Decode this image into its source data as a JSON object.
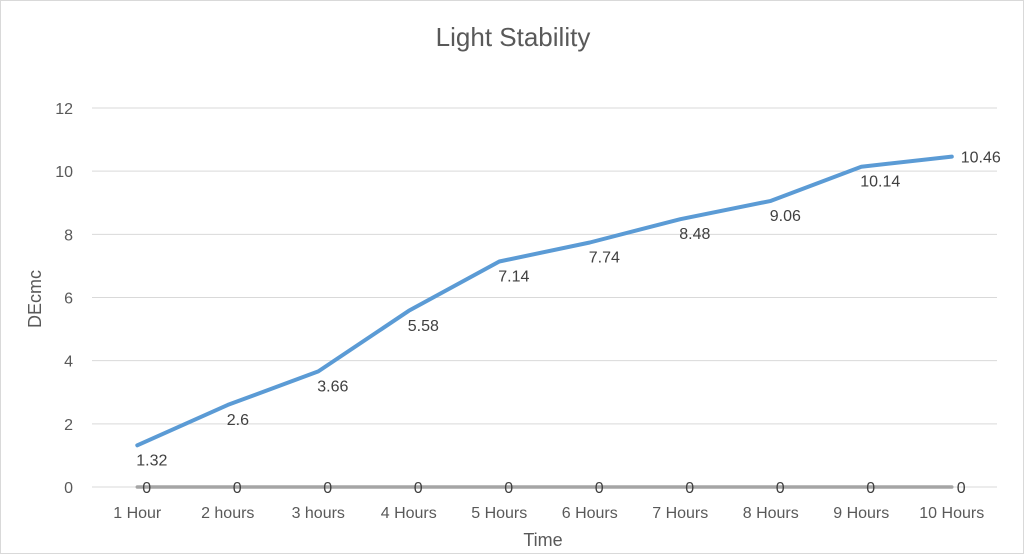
{
  "chart_data": {
    "type": "line",
    "title": "Light Stability",
    "xlabel": "Time",
    "ylabel": "DEcmc",
    "categories": [
      "1 Hour",
      "2 hours",
      "3 hours",
      "4 Hours",
      "5 Hours",
      "6 Hours",
      "7 Hours",
      "8 Hours",
      "9 Hours",
      "10 Hours"
    ],
    "ylim": [
      0,
      12
    ],
    "yticks": [
      "0",
      "2",
      "4",
      "6",
      "8",
      "10",
      "12"
    ],
    "grid": true,
    "series": [
      {
        "color": "#5B9BD5",
        "values": [
          1.32,
          2.6,
          3.66,
          5.58,
          7.14,
          7.74,
          8.48,
          9.06,
          10.14,
          10.46
        ],
        "labels": [
          "1.32",
          "2.6",
          "3.66",
          "5.58",
          "7.14",
          "7.74",
          "8.48",
          "9.06",
          "10.14",
          "10.46"
        ]
      },
      {
        "color": "#A5A5A5",
        "values": [
          0,
          0,
          0,
          0,
          0,
          0,
          0,
          0,
          0,
          0
        ],
        "labels": [
          "0",
          "0",
          "0",
          "0",
          "0",
          "0",
          "0",
          "0",
          "0",
          "0"
        ]
      }
    ]
  }
}
